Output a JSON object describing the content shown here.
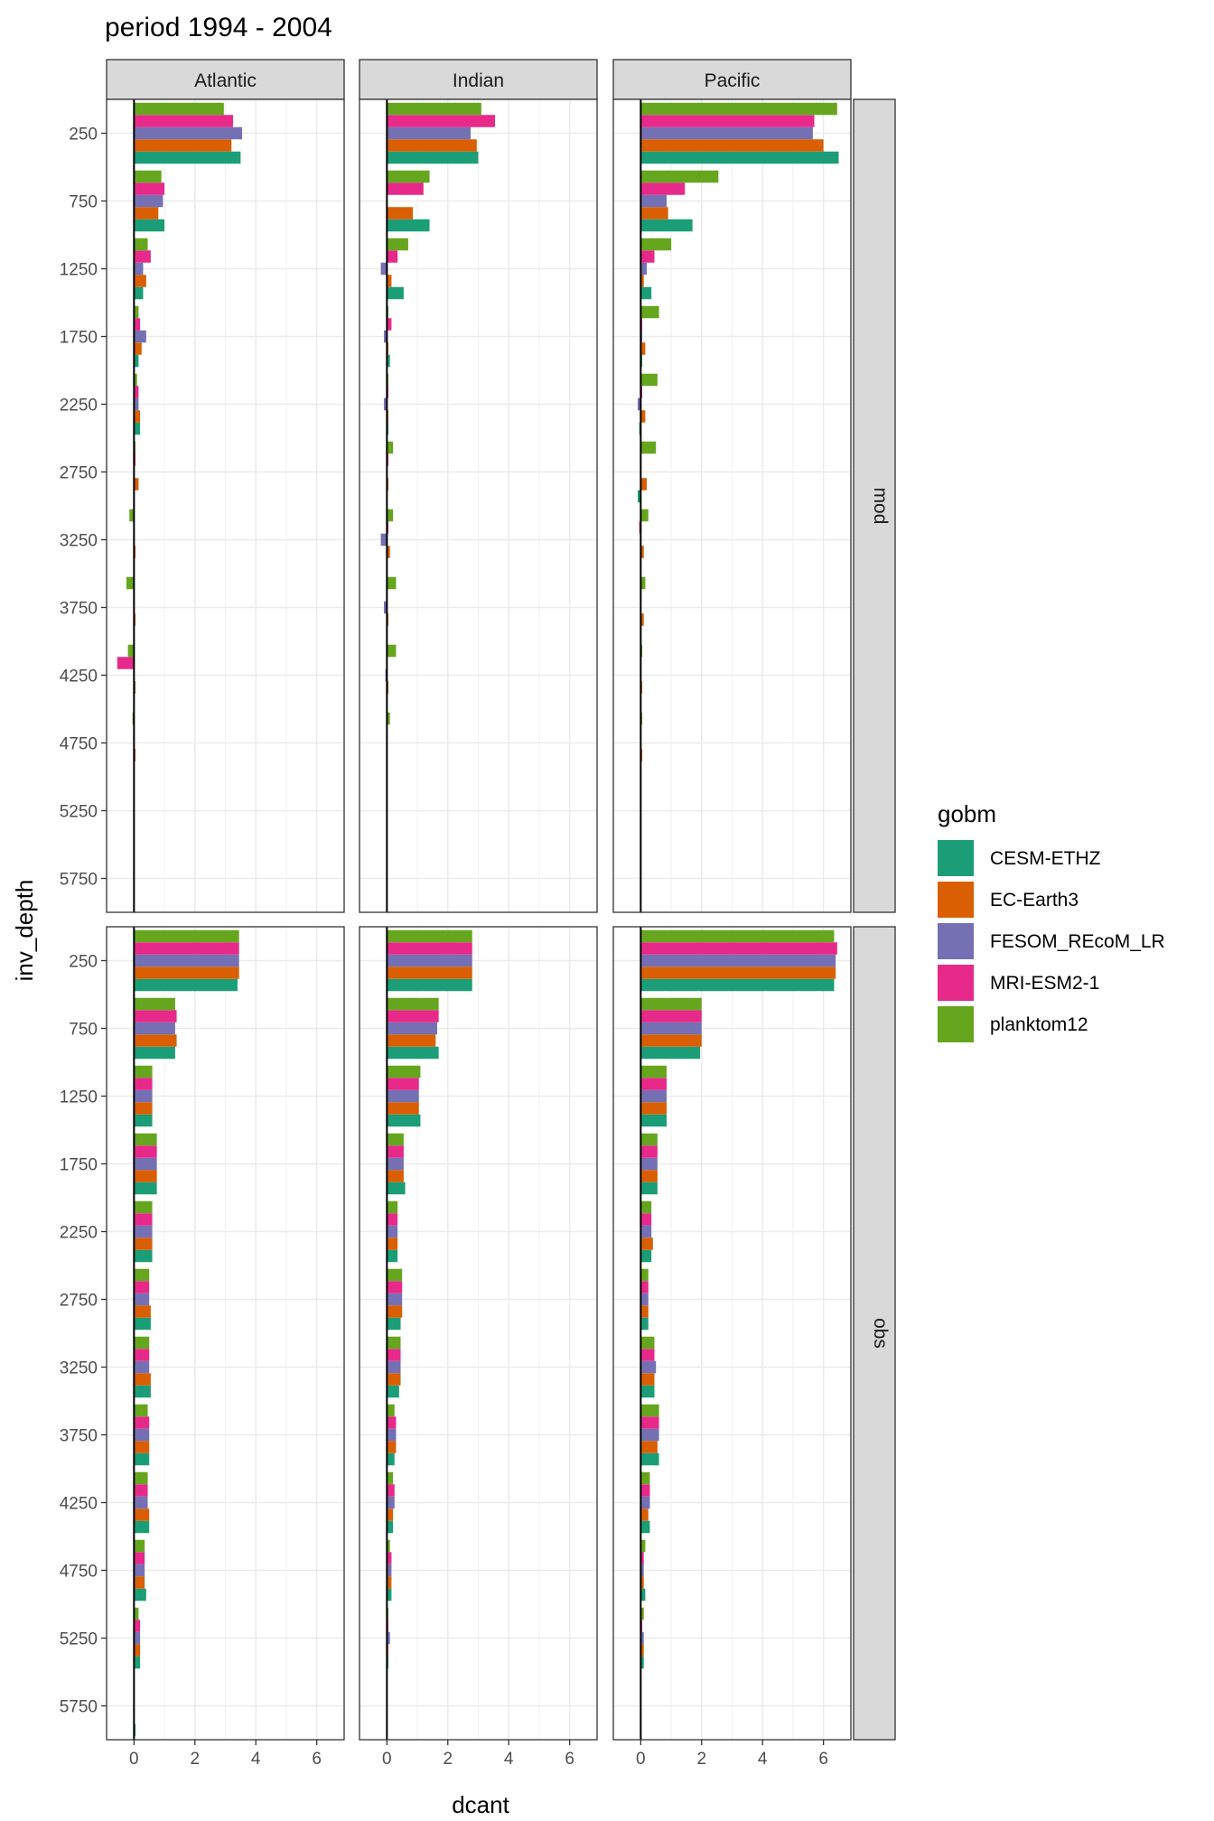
{
  "chart_data": {
    "type": "bar",
    "orientation": "horizontal",
    "title": "period 1994 - 2004",
    "xlabel": "dcant",
    "ylabel": "inv_depth",
    "xlim": [
      -0.9,
      6.9
    ],
    "x_ticks": [
      "0",
      "2",
      "4",
      "6"
    ],
    "y_tick_labels": [
      "250",
      "750",
      "1250",
      "1750",
      "2250",
      "2750",
      "3250",
      "3750",
      "4250",
      "4750",
      "5250",
      "5750"
    ],
    "y_tick_values": [
      250,
      750,
      1250,
      1750,
      2250,
      2750,
      3250,
      3750,
      4250,
      4750,
      5250,
      5750
    ],
    "grid": true,
    "legend": {
      "title": "gobm",
      "position": "right",
      "entries": [
        "CESM-ETHZ",
        "EC-Earth3",
        "FESOM_REcoM_LR",
        "MRI-ESM2-1",
        "planktom12"
      ]
    },
    "colors": {
      "CESM-ETHZ": "#1B9E77",
      "EC-Earth3": "#D95F02",
      "FESOM_REcoM_LR": "#7570B3",
      "MRI-ESM2-1": "#E7298A",
      "planktom12": "#66A61E"
    },
    "columns": [
      "Atlantic",
      "Indian",
      "Pacific"
    ],
    "rows": [
      "mod",
      "obs"
    ],
    "series_order": [
      "CESM-ETHZ",
      "EC-Earth3",
      "FESOM_REcoM_LR",
      "MRI-ESM2-1",
      "planktom12"
    ],
    "panels": {
      "mod": {
        "Atlantic": {
          "CESM-ETHZ": [
            3.5,
            1.0,
            0.3,
            0.15,
            0.2,
            0.0,
            0.0,
            0.0,
            0.0,
            0.0,
            0.0,
            0.0
          ],
          "EC-Earth3": [
            3.2,
            0.8,
            0.4,
            0.25,
            0.2,
            0.15,
            0.05,
            0.05,
            0.05,
            0.05,
            0.0,
            0.0
          ],
          "FESOM_REcoM_LR": [
            3.55,
            0.95,
            0.3,
            0.4,
            0.15,
            0.0,
            0.0,
            0.0,
            0.0,
            0.0,
            0.0,
            0.0
          ],
          "MRI-ESM2-1": [
            3.25,
            1.0,
            0.55,
            0.2,
            0.15,
            0.05,
            0.0,
            0.0,
            -0.55,
            0.0,
            0.0,
            0.0
          ],
          "planktom12": [
            2.95,
            0.9,
            0.45,
            0.15,
            0.1,
            0.05,
            -0.15,
            -0.25,
            -0.2,
            -0.05,
            0.0,
            0.0
          ]
        },
        "Indian": {
          "CESM-ETHZ": [
            3.0,
            1.4,
            0.55,
            0.1,
            0.05,
            0.0,
            0.0,
            0.0,
            0.0,
            0.0,
            0.0,
            0.0
          ],
          "EC-Earth3": [
            2.95,
            0.85,
            0.15,
            0.05,
            0.05,
            0.05,
            0.1,
            0.05,
            0.05,
            0.0,
            0.0,
            0.0
          ],
          "FESOM_REcoM_LR": [
            2.75,
            0.0,
            -0.2,
            -0.1,
            -0.1,
            0.0,
            -0.2,
            -0.1,
            -0.05,
            0.0,
            0.0,
            0.0
          ],
          "MRI-ESM2-1": [
            3.55,
            1.2,
            0.35,
            0.15,
            0.05,
            0.05,
            0.05,
            0.0,
            0.0,
            0.0,
            0.0,
            0.0
          ],
          "planktom12": [
            3.1,
            1.4,
            0.7,
            0.05,
            0.05,
            0.2,
            0.2,
            0.3,
            0.3,
            0.1,
            0.0,
            0.0
          ]
        },
        "Pacific": {
          "CESM-ETHZ": [
            6.5,
            1.7,
            0.35,
            0.05,
            -0.05,
            -0.1,
            0.0,
            0.0,
            0.0,
            0.0,
            0.0,
            0.0
          ],
          "EC-Earth3": [
            6.0,
            0.9,
            0.1,
            0.15,
            0.15,
            0.2,
            0.1,
            0.1,
            0.05,
            0.05,
            0.0,
            0.0
          ],
          "FESOM_REcoM_LR": [
            5.65,
            0.85,
            0.2,
            0.05,
            -0.1,
            0.0,
            0.0,
            0.0,
            0.0,
            0.0,
            0.0,
            0.0
          ],
          "MRI-ESM2-1": [
            5.7,
            1.45,
            0.45,
            0.05,
            0.05,
            0.0,
            -0.05,
            0.0,
            0.0,
            0.0,
            0.0,
            0.0
          ],
          "planktom12": [
            6.45,
            2.55,
            1.0,
            0.6,
            0.55,
            0.5,
            0.25,
            0.15,
            0.05,
            0.05,
            0.0,
            0.0
          ]
        }
      },
      "obs": {
        "Atlantic": {
          "CESM-ETHZ": [
            3.4,
            1.35,
            0.6,
            0.75,
            0.6,
            0.55,
            0.55,
            0.5,
            0.5,
            0.4,
            0.2,
            0.05
          ],
          "EC-Earth3": [
            3.45,
            1.4,
            0.6,
            0.75,
            0.6,
            0.55,
            0.55,
            0.5,
            0.5,
            0.35,
            0.2,
            0.0
          ],
          "FESOM_REcoM_LR": [
            3.45,
            1.35,
            0.6,
            0.75,
            0.6,
            0.5,
            0.5,
            0.5,
            0.45,
            0.35,
            0.2,
            0.0
          ],
          "MRI-ESM2-1": [
            3.45,
            1.4,
            0.6,
            0.75,
            0.6,
            0.5,
            0.5,
            0.5,
            0.45,
            0.35,
            0.2,
            0.0
          ],
          "planktom12": [
            3.45,
            1.35,
            0.6,
            0.75,
            0.6,
            0.5,
            0.5,
            0.45,
            0.45,
            0.35,
            0.15,
            0.0
          ]
        },
        "Indian": {
          "CESM-ETHZ": [
            2.8,
            1.7,
            1.1,
            0.6,
            0.35,
            0.45,
            0.4,
            0.25,
            0.2,
            0.15,
            0.05,
            0.0
          ],
          "EC-Earth3": [
            2.8,
            1.6,
            1.05,
            0.55,
            0.35,
            0.5,
            0.45,
            0.3,
            0.2,
            0.15,
            0.05,
            0.0
          ],
          "FESOM_REcoM_LR": [
            2.8,
            1.65,
            1.05,
            0.55,
            0.35,
            0.5,
            0.45,
            0.3,
            0.25,
            0.15,
            0.1,
            0.0
          ],
          "MRI-ESM2-1": [
            2.8,
            1.7,
            1.05,
            0.55,
            0.35,
            0.5,
            0.45,
            0.3,
            0.25,
            0.15,
            0.05,
            0.0
          ],
          "planktom12": [
            2.8,
            1.7,
            1.1,
            0.55,
            0.35,
            0.5,
            0.45,
            0.25,
            0.2,
            0.1,
            0.05,
            0.0
          ]
        },
        "Pacific": {
          "CESM-ETHZ": [
            6.35,
            1.95,
            0.85,
            0.55,
            0.35,
            0.25,
            0.45,
            0.6,
            0.3,
            0.15,
            0.1,
            0.0
          ],
          "EC-Earth3": [
            6.4,
            2.0,
            0.85,
            0.55,
            0.4,
            0.25,
            0.45,
            0.55,
            0.25,
            0.1,
            0.1,
            0.0
          ],
          "FESOM_REcoM_LR": [
            6.4,
            2.0,
            0.85,
            0.55,
            0.35,
            0.25,
            0.5,
            0.6,
            0.3,
            0.1,
            0.1,
            0.0
          ],
          "MRI-ESM2-1": [
            6.45,
            2.0,
            0.85,
            0.55,
            0.35,
            0.25,
            0.45,
            0.6,
            0.3,
            0.1,
            0.05,
            0.0
          ],
          "planktom12": [
            6.35,
            2.0,
            0.85,
            0.55,
            0.35,
            0.25,
            0.45,
            0.6,
            0.3,
            0.15,
            0.1,
            0.0
          ]
        }
      }
    }
  }
}
